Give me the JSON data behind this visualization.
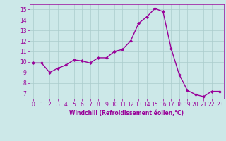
{
  "x": [
    0,
    1,
    2,
    3,
    4,
    5,
    6,
    7,
    8,
    9,
    10,
    11,
    12,
    13,
    14,
    15,
    16,
    17,
    18,
    19,
    20,
    21,
    22,
    23
  ],
  "y": [
    9.9,
    9.9,
    9.0,
    9.4,
    9.7,
    10.2,
    10.1,
    9.9,
    10.4,
    10.4,
    11.0,
    11.2,
    12.0,
    13.7,
    14.3,
    15.1,
    14.8,
    11.3,
    8.8,
    7.3,
    6.9,
    6.7,
    7.2,
    7.2
  ],
  "line_color": "#990099",
  "marker": "D",
  "marker_size": 2.0,
  "bg_color": "#cce8e8",
  "grid_color": "#aacccc",
  "xlabel": "Windchill (Refroidissement éolien,°C)",
  "xlabel_color": "#990099",
  "tick_color": "#990099",
  "xlim": [
    -0.5,
    23.5
  ],
  "ylim": [
    6.5,
    15.5
  ],
  "yticks": [
    7,
    8,
    9,
    10,
    11,
    12,
    13,
    14,
    15
  ],
  "xticks": [
    0,
    1,
    2,
    3,
    4,
    5,
    6,
    7,
    8,
    9,
    10,
    11,
    12,
    13,
    14,
    15,
    16,
    17,
    18,
    19,
    20,
    21,
    22,
    23
  ],
  "linewidth": 1.0,
  "tick_fontsize": 5.5,
  "xlabel_fontsize": 5.5
}
